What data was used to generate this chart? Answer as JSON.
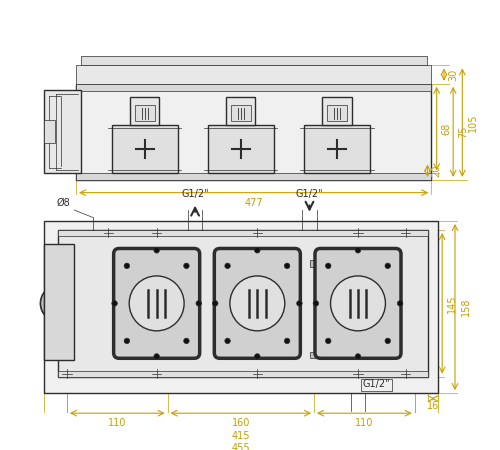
{
  "bg_color": "#ffffff",
  "line_color": "#2d2d2d",
  "dim_color": "#c8a000",
  "body_fill": "#f0f0f0",
  "body_fill2": "#e8e8e8",
  "body_fill3": "#e0e0e0",
  "body_fill4": "#d8d8d8",
  "body_fill5": "#d0d0d0",
  "body_fill6": "#c0c0c0",
  "dim_477": "477",
  "dim_30": "30",
  "dim_68": "68",
  "dim_75": "75",
  "dim_105": "105",
  "dim_20": "20",
  "dim_110a": "110",
  "dim_160": "160",
  "dim_110b": "110",
  "dim_415": "415",
  "dim_455": "455",
  "dim_145": "145",
  "dim_158": "158",
  "dim_16": "16",
  "dim_g12_top1": "G1/2\"",
  "dim_g12_top2": "G1/2\"",
  "dim_g12_bot": "G1/2\"",
  "dim_phi8": "Ø8"
}
